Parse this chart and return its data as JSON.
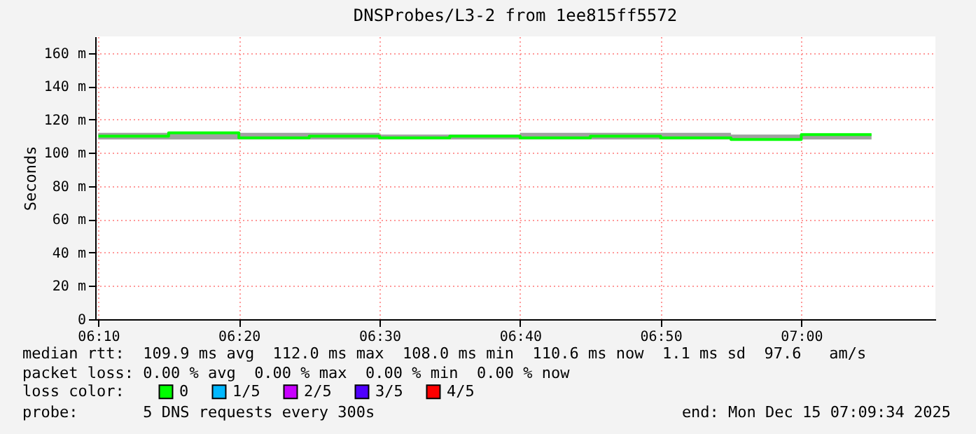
{
  "chart_data": {
    "type": "step",
    "title": "DNSProbes/L3-2 from 1ee815ff5572",
    "ylabel": "Seconds",
    "x": [
      6.1667,
      6.25,
      6.3333,
      6.4167,
      6.5,
      6.5833,
      6.6667,
      6.75,
      6.8333,
      6.9167,
      7.0,
      7.0833
    ],
    "series": [
      {
        "name": "0",
        "color": "#00ff00",
        "values": [
          110,
          112,
          109,
          110,
          109,
          110,
          109,
          110,
          109,
          108,
          111,
          111
        ],
        "lower": [
          108,
          108,
          108,
          108,
          108,
          108,
          108,
          108,
          108,
          108,
          108,
          108
        ],
        "upper": [
          112,
          112,
          112,
          112,
          111,
          111,
          112,
          112,
          112,
          111,
          111,
          111
        ]
      },
      {
        "name": "1/5",
        "color": "#00b8ff",
        "values": [
          null,
          null,
          null,
          null,
          null,
          null,
          null,
          null,
          null,
          null,
          null,
          null
        ]
      },
      {
        "name": "2/5",
        "color": "#c800ff",
        "values": [
          null,
          null,
          null,
          null,
          null,
          null,
          null,
          null,
          null,
          null,
          null,
          null
        ]
      },
      {
        "name": "3/5",
        "color": "#5000ff",
        "values": [
          null,
          null,
          null,
          null,
          null,
          null,
          null,
          null,
          null,
          null,
          null,
          null
        ]
      },
      {
        "name": "4/5",
        "color": "#ff0000",
        "values": [
          null,
          null,
          null,
          null,
          null,
          null,
          null,
          null,
          null,
          null,
          null,
          null
        ]
      }
    ],
    "legend_title": "loss color:",
    "legend": "bottom",
    "xlim": [
      6.163,
      7.159
    ],
    "xticks": [
      {
        "value": 6.1667,
        "label": "06:10"
      },
      {
        "value": 6.3333,
        "label": "06:20"
      },
      {
        "value": 6.5,
        "label": "06:30"
      },
      {
        "value": 6.6667,
        "label": "06:40"
      },
      {
        "value": 6.8333,
        "label": "06:50"
      },
      {
        "value": 7.0,
        "label": "07:00"
      }
    ],
    "ylim": [
      0,
      170
    ],
    "yticks": [
      0,
      {
        "value": 20,
        "label": "20 m"
      },
      {
        "value": 40,
        "label": "40 m"
      },
      {
        "value": 60,
        "label": "60 m"
      },
      {
        "value": 80,
        "label": "80 m"
      },
      {
        "value": 100,
        "label": "100 m"
      },
      {
        "value": 120,
        "label": "120 m"
      },
      {
        "value": 140,
        "label": "140 m"
      },
      {
        "value": 160,
        "label": "160 m"
      }
    ],
    "grid": true,
    "annotations": [
      "median rtt:  109.9 ms avg  112.0 ms max  108.0 ms min  110.6 ms now  1.1 ms sd  97.6   am/s",
      "packet loss: 0.00 % avg  0.00 % max  0.00 % min  0.00 % now",
      "probe:       5 DNS requests every 300s",
      "end: Mon Dec 15 07:09:34 2025"
    ]
  }
}
